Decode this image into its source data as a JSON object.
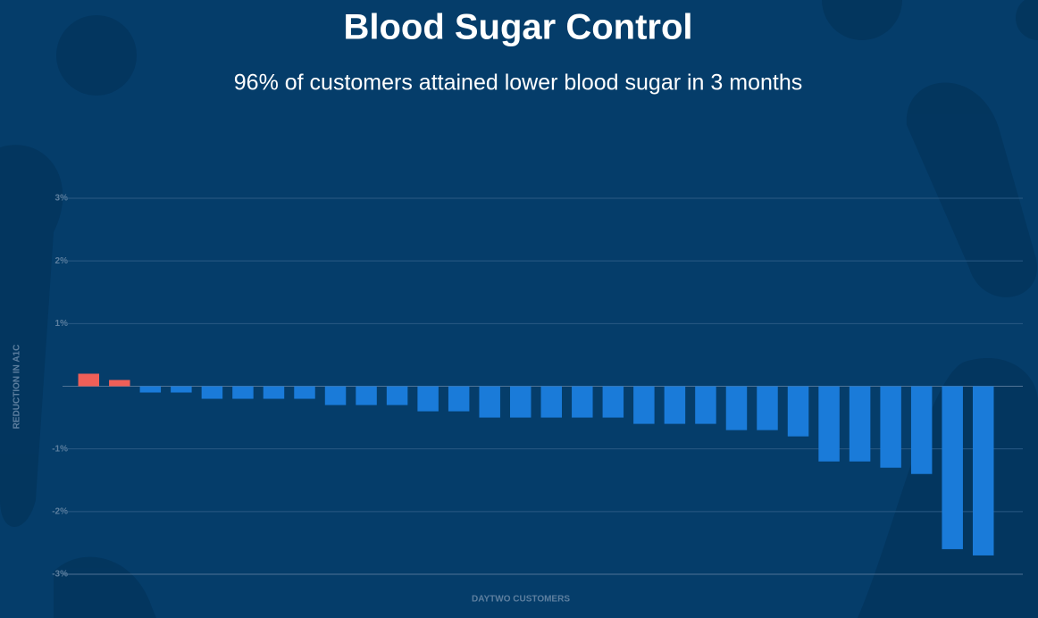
{
  "chart_data": {
    "type": "bar",
    "title": "Blood Sugar Control",
    "subtitle": "96% of customers attained lower blood sugar in 3 months",
    "y_label": "REDUCTION IN A1C",
    "x_label": "DAYTWO CUSTOMERS",
    "categories": [
      null,
      null,
      null,
      null,
      null,
      null,
      null,
      null,
      null,
      null,
      null,
      null,
      null,
      null,
      null,
      null,
      null,
      null,
      null,
      null,
      null,
      null,
      null,
      null,
      null,
      null,
      null,
      null,
      null,
      null
    ],
    "values": [
      0.2,
      0.1,
      -0.1,
      -0.1,
      -0.2,
      -0.2,
      -0.2,
      -0.2,
      -0.3,
      -0.3,
      -0.3,
      -0.4,
      -0.4,
      -0.5,
      -0.5,
      -0.5,
      -0.5,
      -0.5,
      -0.6,
      -0.6,
      -0.6,
      -0.7,
      -0.7,
      -0.8,
      -1.2,
      -1.2,
      -1.3,
      -1.4,
      -2.6,
      -2.7
    ],
    "color": "#1a7bd9",
    "positive_color": "#ef5f58",
    "ylim": [
      -3,
      3
    ],
    "yticks": [
      {
        "value": 3,
        "label": "3%"
      },
      {
        "value": 2,
        "label": "2%"
      },
      {
        "value": 1,
        "label": "1%"
      },
      {
        "value": -1,
        "label": "-1%"
      },
      {
        "value": -2,
        "label": "-2%"
      },
      {
        "value": -3,
        "label": "-3%"
      }
    ],
    "grid": true
  }
}
